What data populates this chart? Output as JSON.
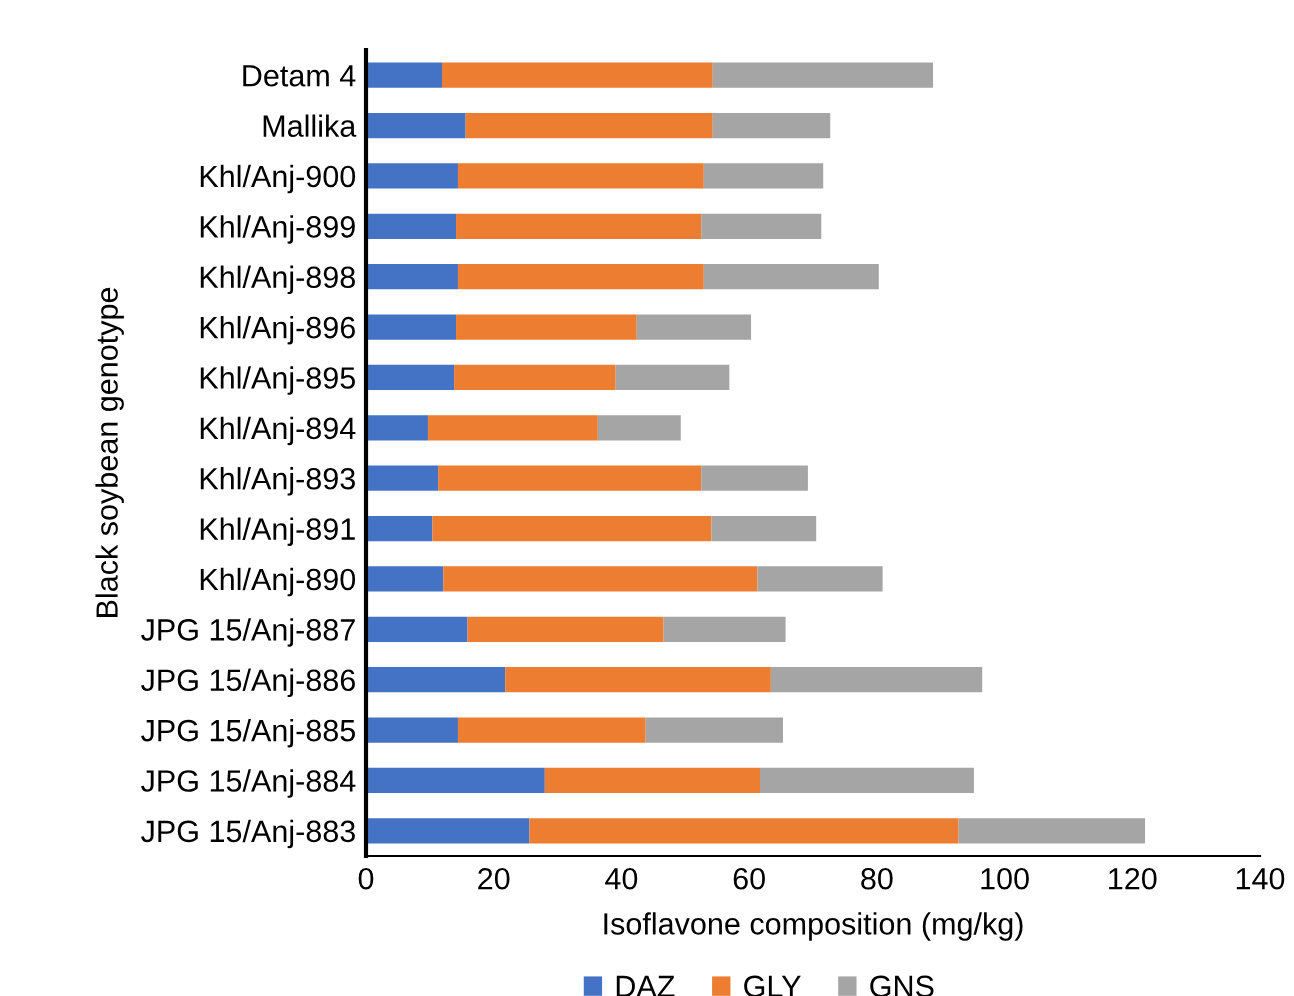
{
  "chart_data": {
    "type": "bar",
    "orientation": "horizontal",
    "stacked": true,
    "xlabel": "Isoflavone composition (mg/kg)",
    "ylabel": "Black soybean genotype",
    "categories": [
      "Detam 4",
      "Mallika",
      "Khl/Anj-900",
      "Khl/Anj-899",
      "Khl/Anj-898",
      "Khl/Anj-896",
      "Khl/Anj-895",
      "Khl/Anj-894",
      "Khl/Anj-893",
      "Khl/Anj-891",
      "Khl/Anj-890",
      "JPG 15/Anj-887",
      "JPG 15/Anj-886",
      "JPG 15/Anj-885",
      "JPG 15/Anj-884",
      "JPG 15/Anj-883"
    ],
    "series": [
      {
        "name": "DAZ",
        "color": "#4472c4",
        "values": [
          11.9,
          15.6,
          14.4,
          14.1,
          14.4,
          14.1,
          13.8,
          9.7,
          11.3,
          10.4,
          12.1,
          15.9,
          21.8,
          14.4,
          28.0,
          25.6
        ]
      },
      {
        "name": "GLY",
        "color": "#ed7d31",
        "values": [
          42.4,
          38.7,
          38.5,
          38.4,
          38.5,
          28.3,
          25.3,
          26.6,
          41.2,
          43.7,
          49.2,
          30.7,
          41.6,
          29.4,
          33.7,
          67.2
        ]
      },
      {
        "name": "GNS",
        "color": "#a5a5a5",
        "values": [
          34.5,
          18.4,
          18.7,
          18.8,
          27.4,
          17.9,
          17.8,
          13.0,
          16.7,
          16.4,
          19.6,
          19.1,
          33.1,
          21.5,
          33.5,
          29.2
        ]
      }
    ],
    "xlim": [
      0,
      140
    ],
    "xticks": [
      0,
      20,
      40,
      60,
      80,
      100,
      120,
      140
    ],
    "grid": false,
    "legend": "bottom"
  }
}
